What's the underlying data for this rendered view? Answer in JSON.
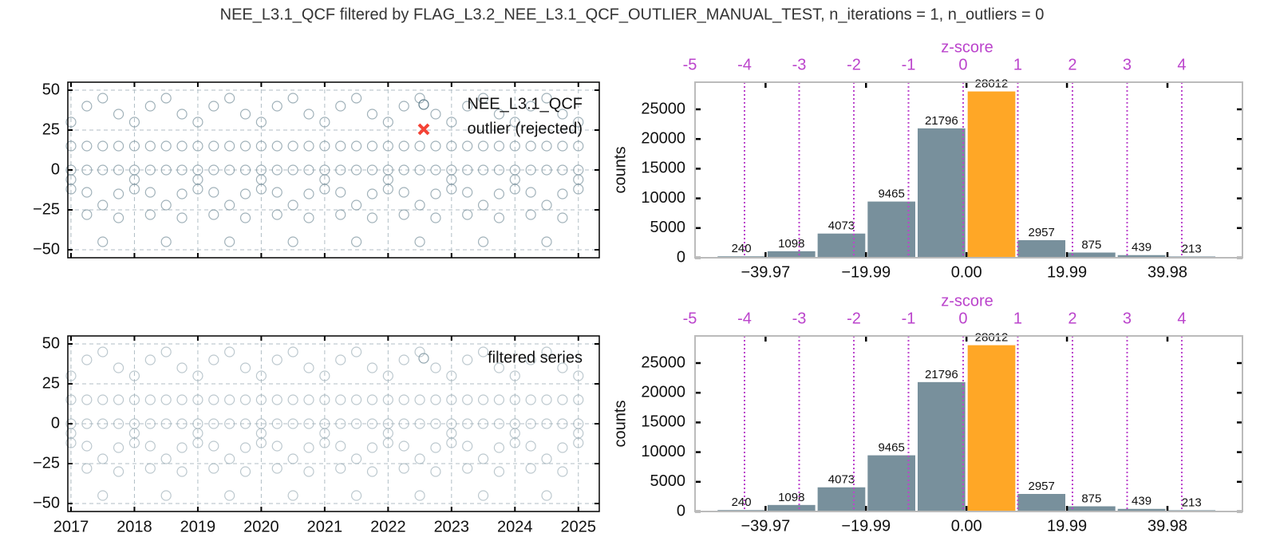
{
  "title": "NEE_L3.1_QCF filtered by FLAG_L3.2_NEE_L3.1_QCF_OUTLIER_MANUAL_TEST, n_iterations = 1, n_outliers = 0",
  "chart_data": [
    {
      "type": "scatter",
      "grid": true,
      "xtick_labels": false,
      "legend": "upper right",
      "xlim": [
        2016.95,
        2025.33
      ],
      "ylim": [
        -55,
        55
      ],
      "xticks": [
        2017,
        2018,
        2019,
        2020,
        2021,
        2022,
        2023,
        2024,
        2025
      ],
      "yticks": [
        50,
        25,
        0,
        {
          "value": -25,
          "label": "−25"
        },
        {
          "value": -50,
          "label": "−50"
        }
      ],
      "series": [
        {
          "name": "NEE_L3.1_QCF",
          "color": "#607d8b",
          "marker": "o",
          "x": [
            2017,
            2017,
            2017,
            2017,
            2017,
            2017.25,
            2017.25,
            2017.25,
            2017.25,
            2017.25,
            2017.5,
            2017.5,
            2017.5,
            2017.5,
            2017.5,
            2017.75,
            2017.75,
            2017.75,
            2017.75,
            2017.75,
            2018,
            2018,
            2018,
            2018,
            2018,
            2018.25,
            2018.25,
            2018.25,
            2018.25,
            2018.25,
            2018.5,
            2018.5,
            2018.5,
            2018.5,
            2018.5,
            2018.75,
            2018.75,
            2018.75,
            2018.75,
            2018.75,
            2019,
            2019,
            2019,
            2019,
            2019,
            2019.25,
            2019.25,
            2019.25,
            2019.25,
            2019.25,
            2019.5,
            2019.5,
            2019.5,
            2019.5,
            2019.5,
            2019.75,
            2019.75,
            2019.75,
            2019.75,
            2019.75,
            2020,
            2020,
            2020,
            2020,
            2020,
            2020.25,
            2020.25,
            2020.25,
            2020.25,
            2020.25,
            2020.5,
            2020.5,
            2020.5,
            2020.5,
            2020.5,
            2020.75,
            2020.75,
            2020.75,
            2020.75,
            2020.75,
            2021,
            2021,
            2021,
            2021,
            2021,
            2021.25,
            2021.25,
            2021.25,
            2021.25,
            2021.25,
            2021.5,
            2021.5,
            2021.5,
            2021.5,
            2021.5,
            2021.75,
            2021.75,
            2021.75,
            2021.75,
            2021.75,
            2022,
            2022,
            2022,
            2022,
            2022,
            2022.25,
            2022.25,
            2022.25,
            2022.25,
            2022.25,
            2022.5,
            2022.5,
            2022.5,
            2022.5,
            2022.5,
            2022.75,
            2022.75,
            2022.75,
            2022.75,
            2022.75,
            2023,
            2023,
            2023,
            2023,
            2023,
            2023.25,
            2023.25,
            2023.25,
            2023.25,
            2023.25,
            2023.5,
            2023.5,
            2023.5,
            2023.5,
            2023.5,
            2023.75,
            2023.75,
            2023.75,
            2023.75,
            2023.75,
            2024,
            2024,
            2024,
            2024,
            2024,
            2024.25,
            2024.25,
            2024.25,
            2024.25,
            2024.25,
            2024.5,
            2024.5,
            2024.5,
            2024.5,
            2024.5,
            2024.75,
            2024.75,
            2024.75,
            2024.75,
            2024.75,
            2025,
            2025,
            2025,
            2025,
            2025
          ],
          "values": [
            30,
            15,
            0,
            -6,
            -12,
            40,
            15,
            0,
            -14,
            -28,
            45,
            15,
            0,
            -22,
            -45,
            35,
            15,
            0,
            -15,
            -30,
            30,
            15,
            0,
            -6,
            -12,
            40,
            15,
            0,
            -14,
            -28,
            45,
            15,
            0,
            -22,
            -45,
            35,
            15,
            0,
            -15,
            -30,
            30,
            15,
            0,
            -6,
            -12,
            40,
            15,
            0,
            -14,
            -28,
            45,
            15,
            0,
            -22,
            -45,
            35,
            15,
            0,
            -15,
            -30,
            30,
            15,
            0,
            -6,
            -12,
            40,
            15,
            0,
            -14,
            -28,
            45,
            15,
            0,
            -22,
            -45,
            35,
            15,
            0,
            -15,
            -30,
            30,
            15,
            0,
            -6,
            -12,
            40,
            15,
            0,
            -14,
            -28,
            45,
            15,
            0,
            -22,
            -45,
            35,
            15,
            0,
            -15,
            -30,
            30,
            15,
            0,
            -6,
            -12,
            40,
            15,
            0,
            -14,
            -28,
            45,
            15,
            0,
            -22,
            -45,
            35,
            15,
            0,
            -15,
            -30,
            30,
            15,
            0,
            -6,
            -12,
            40,
            15,
            0,
            -14,
            -28,
            45,
            15,
            0,
            -22,
            -45,
            35,
            15,
            0,
            -15,
            -30,
            30,
            15,
            0,
            -6,
            -12,
            40,
            15,
            0,
            -14,
            -28,
            45,
            15,
            0,
            -22,
            -45,
            35,
            15,
            0,
            -15,
            -30,
            30,
            15,
            0,
            -6,
            -12
          ]
        },
        {
          "name": "outlier (rejected)",
          "color": "#f44336",
          "marker": "x",
          "x": [],
          "values": []
        }
      ]
    },
    {
      "type": "histogram",
      "xlim": [
        -54,
        54.9
      ],
      "ylim": [
        0,
        29570
      ],
      "bins": [
        -49.75,
        -39.8,
        -29.85,
        -19.9,
        -9.95,
        0,
        9.95,
        19.9,
        29.85,
        39.8,
        49.75
      ],
      "values": [
        240,
        1098,
        4073,
        9465,
        21796,
        28012,
        2957,
        875,
        439,
        213
      ],
      "colors": [
        "#78909c",
        "#78909c",
        "#78909c",
        "#78909c",
        "#78909c",
        "#ffa726",
        "#78909c",
        "#78909c",
        "#78909c",
        "#78909c"
      ],
      "xticks": [
        {
          "value": -39.97,
          "label": "−39.97"
        },
        {
          "value": -19.99,
          "label": "−19.99"
        },
        {
          "value": 0,
          "label": "0.00"
        },
        19.99,
        39.98
      ],
      "yticks": [
        0,
        5000,
        10000,
        15000,
        20000,
        25000
      ],
      "ylabel": "counts",
      "x2label": "z-score",
      "x2_color": "#bb44cc",
      "x2lim": [
        -4.905,
        5.11
      ],
      "x2ticks": [
        -5,
        -4,
        -3,
        -2,
        -1,
        0,
        1,
        2,
        3,
        4
      ]
    },
    {
      "type": "scatter",
      "grid": true,
      "xtick_labels": true,
      "legend": "upper right",
      "xlim": [
        2016.95,
        2025.33
      ],
      "ylim": [
        -55,
        55
      ],
      "xticks": [
        2017,
        2018,
        2019,
        2020,
        2021,
        2022,
        2023,
        2024,
        2025
      ],
      "yticks": [
        50,
        25,
        0,
        {
          "value": -25,
          "label": "−25"
        },
        {
          "value": -50,
          "label": "−50"
        }
      ],
      "series": [
        {
          "name": "filtered series",
          "color": "#90a4ae",
          "marker": "o",
          "x": [
            2017,
            2017,
            2017,
            2017,
            2017,
            2017.25,
            2017.25,
            2017.25,
            2017.25,
            2017.25,
            2017.5,
            2017.5,
            2017.5,
            2017.5,
            2017.5,
            2017.75,
            2017.75,
            2017.75,
            2017.75,
            2017.75,
            2018,
            2018,
            2018,
            2018,
            2018,
            2018.25,
            2018.25,
            2018.25,
            2018.25,
            2018.25,
            2018.5,
            2018.5,
            2018.5,
            2018.5,
            2018.5,
            2018.75,
            2018.75,
            2018.75,
            2018.75,
            2018.75,
            2019,
            2019,
            2019,
            2019,
            2019,
            2019.25,
            2019.25,
            2019.25,
            2019.25,
            2019.25,
            2019.5,
            2019.5,
            2019.5,
            2019.5,
            2019.5,
            2019.75,
            2019.75,
            2019.75,
            2019.75,
            2019.75,
            2020,
            2020,
            2020,
            2020,
            2020,
            2020.25,
            2020.25,
            2020.25,
            2020.25,
            2020.25,
            2020.5,
            2020.5,
            2020.5,
            2020.5,
            2020.5,
            2020.75,
            2020.75,
            2020.75,
            2020.75,
            2020.75,
            2021,
            2021,
            2021,
            2021,
            2021,
            2021.25,
            2021.25,
            2021.25,
            2021.25,
            2021.25,
            2021.5,
            2021.5,
            2021.5,
            2021.5,
            2021.5,
            2021.75,
            2021.75,
            2021.75,
            2021.75,
            2021.75,
            2022,
            2022,
            2022,
            2022,
            2022,
            2022.25,
            2022.25,
            2022.25,
            2022.25,
            2022.25,
            2022.5,
            2022.5,
            2022.5,
            2022.5,
            2022.5,
            2022.75,
            2022.75,
            2022.75,
            2022.75,
            2022.75,
            2023,
            2023,
            2023,
            2023,
            2023,
            2023.25,
            2023.25,
            2023.25,
            2023.25,
            2023.25,
            2023.5,
            2023.5,
            2023.5,
            2023.5,
            2023.5,
            2023.75,
            2023.75,
            2023.75,
            2023.75,
            2023.75,
            2024,
            2024,
            2024,
            2024,
            2024,
            2024.25,
            2024.25,
            2024.25,
            2024.25,
            2024.25,
            2024.5,
            2024.5,
            2024.5,
            2024.5,
            2024.5,
            2024.75,
            2024.75,
            2024.75,
            2024.75,
            2024.75,
            2025,
            2025,
            2025,
            2025,
            2025
          ],
          "values": [
            30,
            15,
            0,
            -6,
            -12,
            40,
            15,
            0,
            -14,
            -28,
            45,
            15,
            0,
            -22,
            -45,
            35,
            15,
            0,
            -15,
            -30,
            30,
            15,
            0,
            -6,
            -12,
            40,
            15,
            0,
            -14,
            -28,
            45,
            15,
            0,
            -22,
            -45,
            35,
            15,
            0,
            -15,
            -30,
            30,
            15,
            0,
            -6,
            -12,
            40,
            15,
            0,
            -14,
            -28,
            45,
            15,
            0,
            -22,
            -45,
            35,
            15,
            0,
            -15,
            -30,
            30,
            15,
            0,
            -6,
            -12,
            40,
            15,
            0,
            -14,
            -28,
            45,
            15,
            0,
            -22,
            -45,
            35,
            15,
            0,
            -15,
            -30,
            30,
            15,
            0,
            -6,
            -12,
            40,
            15,
            0,
            -14,
            -28,
            45,
            15,
            0,
            -22,
            -45,
            35,
            15,
            0,
            -15,
            -30,
            30,
            15,
            0,
            -6,
            -12,
            40,
            15,
            0,
            -14,
            -28,
            45,
            15,
            0,
            -22,
            -45,
            35,
            15,
            0,
            -15,
            -30,
            30,
            15,
            0,
            -6,
            -12,
            40,
            15,
            0,
            -14,
            -28,
            45,
            15,
            0,
            -22,
            -45,
            35,
            15,
            0,
            -15,
            -30,
            30,
            15,
            0,
            -6,
            -12,
            40,
            15,
            0,
            -14,
            -28,
            45,
            15,
            0,
            -22,
            -45,
            35,
            15,
            0,
            -15,
            -30,
            30,
            15,
            0,
            -6,
            -12
          ]
        }
      ]
    },
    {
      "type": "histogram",
      "xlim": [
        -54,
        54.9
      ],
      "ylim": [
        0,
        29570
      ],
      "bins": [
        -49.75,
        -39.8,
        -29.85,
        -19.9,
        -9.95,
        0,
        9.95,
        19.9,
        29.85,
        39.8,
        49.75
      ],
      "values": [
        240,
        1098,
        4073,
        9465,
        21796,
        28012,
        2957,
        875,
        439,
        213
      ],
      "colors": [
        "#78909c",
        "#78909c",
        "#78909c",
        "#78909c",
        "#78909c",
        "#ffa726",
        "#78909c",
        "#78909c",
        "#78909c",
        "#78909c"
      ],
      "xticks": [
        {
          "value": -39.97,
          "label": "−39.97"
        },
        {
          "value": -19.99,
          "label": "−19.99"
        },
        {
          "value": 0,
          "label": "0.00"
        },
        19.99,
        39.98
      ],
      "yticks": [
        0,
        5000,
        10000,
        15000,
        20000,
        25000
      ],
      "ylabel": "counts",
      "x2label": "z-score",
      "x2_color": "#bb44cc",
      "x2lim": [
        -4.905,
        5.11
      ],
      "x2ticks": [
        -5,
        -4,
        -3,
        -2,
        -1,
        0,
        1,
        2,
        3,
        4
      ]
    }
  ]
}
